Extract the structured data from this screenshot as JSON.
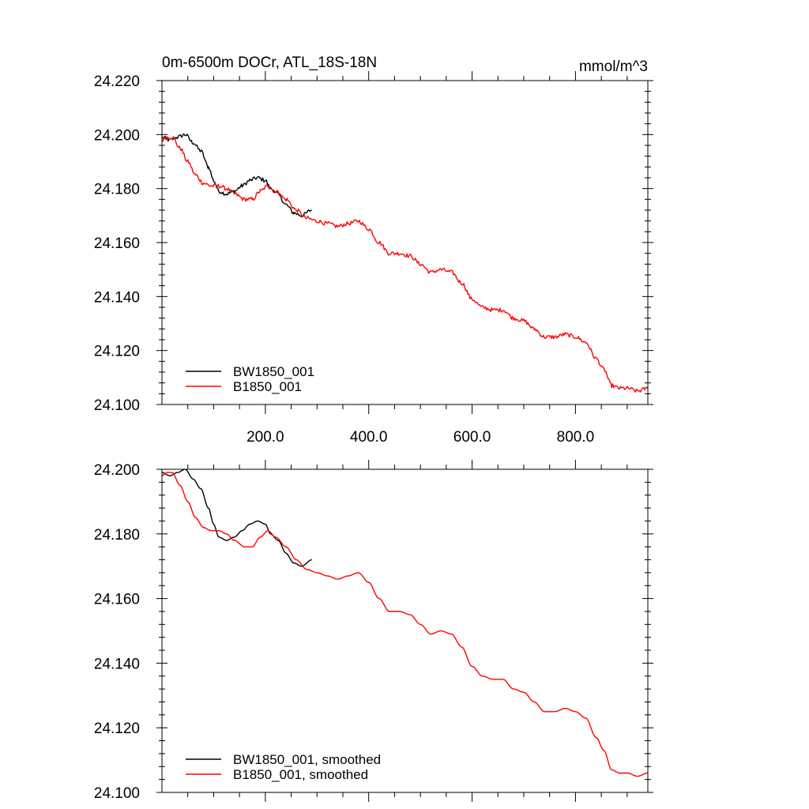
{
  "chart_data": [
    {
      "type": "line",
      "title": "0m-6500m DOCr, ATL_18S-18N",
      "units": "mmol/m^3",
      "xlim": [
        0,
        940
      ],
      "ylim": [
        24.1,
        24.22
      ],
      "x_ticks": [
        200,
        400,
        600,
        800
      ],
      "x_tick_labels": [
        "200.0",
        "400.0",
        "600.0",
        "800.0"
      ],
      "y_ticks": [
        24.1,
        24.12,
        24.14,
        24.16,
        24.18,
        24.2,
        24.22
      ],
      "y_tick_labels": [
        "24.100",
        "24.120",
        "24.140",
        "24.160",
        "24.180",
        "24.200",
        "24.220"
      ],
      "legend_position": "bottom-left",
      "noise": 0.0015,
      "series": [
        {
          "name": "BW1850_001",
          "color": "#000000",
          "x": [
            0,
            15,
            30,
            45,
            60,
            75,
            90,
            100,
            110,
            125,
            140,
            155,
            170,
            185,
            200,
            210,
            225,
            240,
            255,
            270,
            290
          ],
          "y": [
            24.199,
            24.198,
            24.199,
            24.2,
            24.197,
            24.194,
            24.188,
            24.183,
            24.179,
            24.178,
            24.179,
            24.181,
            24.183,
            24.184,
            24.183,
            24.18,
            24.178,
            24.174,
            24.171,
            24.17,
            24.172
          ]
        },
        {
          "name": "B1850_001",
          "color": "#ff0000",
          "x": [
            0,
            10,
            20,
            35,
            50,
            65,
            80,
            95,
            110,
            125,
            140,
            160,
            175,
            190,
            205,
            220,
            240,
            260,
            280,
            300,
            320,
            340,
            360,
            380,
            400,
            420,
            440,
            460,
            480,
            500,
            520,
            540,
            560,
            580,
            600,
            620,
            640,
            660,
            680,
            700,
            720,
            740,
            760,
            780,
            800,
            820,
            840,
            855,
            870,
            885,
            900,
            920,
            940
          ],
          "y": [
            24.198,
            24.199,
            24.199,
            24.195,
            24.19,
            24.185,
            24.182,
            24.181,
            24.181,
            24.18,
            24.178,
            24.176,
            24.176,
            24.179,
            24.181,
            24.179,
            24.176,
            24.172,
            24.169,
            24.168,
            24.167,
            24.166,
            24.167,
            24.168,
            24.165,
            24.16,
            24.156,
            24.156,
            24.155,
            24.152,
            24.149,
            24.15,
            24.149,
            24.145,
            24.139,
            24.136,
            24.135,
            24.135,
            24.132,
            24.131,
            24.128,
            24.125,
            24.125,
            24.126,
            24.125,
            24.123,
            24.117,
            24.113,
            24.107,
            24.106,
            24.106,
            24.105,
            24.106
          ]
        }
      ]
    },
    {
      "type": "line",
      "title": "",
      "xlim": [
        0,
        940
      ],
      "ylim": [
        24.1,
        24.2
      ],
      "x_ticks": [
        200,
        400,
        600,
        800
      ],
      "x_tick_labels": [],
      "y_ticks": [
        24.1,
        24.12,
        24.14,
        24.16,
        24.18,
        24.2
      ],
      "y_tick_labels": [
        "24.100",
        "24.120",
        "24.140",
        "24.160",
        "24.180",
        "24.200"
      ],
      "legend_position": "bottom-left",
      "noise": 0.0,
      "series": [
        {
          "name": "BW1850_001, smoothed",
          "color": "#000000",
          "x": [
            0,
            15,
            30,
            45,
            60,
            75,
            90,
            100,
            110,
            125,
            140,
            155,
            170,
            185,
            200,
            210,
            225,
            240,
            255,
            270,
            290
          ],
          "y": [
            24.199,
            24.198,
            24.199,
            24.2,
            24.197,
            24.194,
            24.188,
            24.183,
            24.179,
            24.178,
            24.179,
            24.181,
            24.183,
            24.184,
            24.183,
            24.18,
            24.178,
            24.174,
            24.171,
            24.17,
            24.172
          ]
        },
        {
          "name": "B1850_001, smoothed",
          "color": "#ff0000",
          "x": [
            0,
            10,
            20,
            35,
            50,
            65,
            80,
            95,
            110,
            125,
            140,
            160,
            175,
            190,
            205,
            220,
            240,
            260,
            280,
            300,
            320,
            340,
            360,
            380,
            400,
            420,
            440,
            460,
            480,
            500,
            520,
            540,
            560,
            580,
            600,
            620,
            640,
            660,
            680,
            700,
            720,
            740,
            760,
            780,
            800,
            820,
            840,
            855,
            870,
            885,
            900,
            920,
            940
          ],
          "y": [
            24.198,
            24.199,
            24.199,
            24.195,
            24.19,
            24.185,
            24.182,
            24.181,
            24.181,
            24.18,
            24.178,
            24.176,
            24.176,
            24.179,
            24.181,
            24.179,
            24.176,
            24.172,
            24.169,
            24.168,
            24.167,
            24.166,
            24.167,
            24.168,
            24.165,
            24.16,
            24.156,
            24.156,
            24.155,
            24.152,
            24.149,
            24.15,
            24.149,
            24.145,
            24.139,
            24.136,
            24.135,
            24.135,
            24.132,
            24.131,
            24.128,
            24.125,
            24.125,
            24.126,
            24.125,
            24.123,
            24.117,
            24.113,
            24.107,
            24.106,
            24.106,
            24.105,
            24.106
          ]
        }
      ]
    }
  ]
}
